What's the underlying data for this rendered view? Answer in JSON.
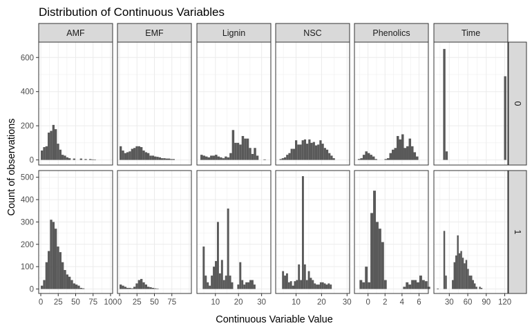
{
  "chart_data": {
    "type": "bar",
    "subtype": "faceted-histogram",
    "title": "Distribution of Continuous Variables",
    "xlabel": "Continuous Variable Value",
    "ylabel": "Count of observations",
    "bar_color": "#595959",
    "panel_border_color": "#333333",
    "strip_fill_color": "#d9d9d9",
    "grid_color": "#ebebeb",
    "grid": true,
    "facet_columns": [
      "AMF",
      "EMF",
      "Lignin",
      "NSC",
      "Phenolics",
      "Time"
    ],
    "facet_rows": [
      "0",
      "1"
    ],
    "x_axes": [
      {
        "column": "AMF",
        "xlim": [
          -3,
          103
        ],
        "ticks": [
          0,
          25,
          50,
          75,
          100
        ],
        "tick_labels": [
          "0",
          "25",
          "50",
          "75",
          "100"
        ]
      },
      {
        "column": "EMF",
        "xlim": [
          -3,
          103
        ],
        "ticks": [
          0,
          25,
          50,
          75
        ],
        "tick_labels": [
          "0",
          "25",
          "50",
          "75"
        ]
      },
      {
        "column": "Lignin",
        "xlim": [
          2,
          34
        ],
        "ticks": [
          10,
          20,
          30
        ],
        "tick_labels": [
          "10",
          "20",
          "30"
        ]
      },
      {
        "column": "NSC",
        "xlim": [
          2,
          31
        ],
        "ticks": [
          10,
          20,
          30
        ],
        "tick_labels": [
          "10",
          "20",
          "30"
        ]
      },
      {
        "column": "Phenolics",
        "xlim": [
          -1.6,
          7.1
        ],
        "ticks": [
          0,
          2,
          4,
          6
        ],
        "tick_labels": [
          "0",
          "2",
          "4",
          "6"
        ]
      },
      {
        "column": "Time",
        "xlim": [
          5,
          125
        ],
        "ticks": [
          30,
          60,
          90,
          120
        ],
        "tick_labels": [
          "30",
          "60",
          "90",
          "120"
        ]
      }
    ],
    "y_axes": [
      {
        "row": "0",
        "ylim": [
          -30,
          690
        ],
        "ticks": [
          0,
          200,
          400,
          600
        ],
        "tick_labels": [
          "0",
          "200",
          "400",
          "600"
        ]
      },
      {
        "row": "1",
        "ylim": [
          -20,
          530
        ],
        "ticks": [
          0,
          100,
          200,
          300,
          400,
          500
        ],
        "tick_labels": [
          "0",
          "100",
          "200",
          "300",
          "400",
          "500"
        ]
      }
    ],
    "panels": [
      {
        "column": "AMF",
        "row": "0",
        "x_start": 0,
        "bin_width": 3.3,
        "counts": [
          55,
          75,
          80,
          160,
          170,
          205,
          180,
          95,
          60,
          30,
          25,
          15,
          10,
          0,
          8,
          0,
          0,
          8,
          0,
          5,
          0,
          5,
          3,
          2
        ]
      },
      {
        "column": "EMF",
        "row": "0",
        "x_start": 0,
        "bin_width": 3.3,
        "counts": [
          80,
          55,
          40,
          45,
          50,
          65,
          70,
          80,
          80,
          75,
          55,
          45,
          40,
          25,
          25,
          20,
          18,
          15,
          10,
          10,
          8,
          8,
          5,
          5
        ]
      },
      {
        "column": "Lignin",
        "row": "0",
        "x_start": 3.5,
        "bin_width": 1.05,
        "counts": [
          30,
          25,
          20,
          15,
          25,
          25,
          30,
          20,
          15,
          10,
          20,
          15,
          40,
          175,
          100,
          100,
          90,
          140,
          125,
          125,
          70,
          35,
          70,
          25,
          0,
          0,
          3
        ]
      },
      {
        "column": "NSC",
        "row": "0",
        "x_start": 3.5,
        "bin_width": 0.87,
        "counts": [
          5,
          10,
          15,
          30,
          40,
          65,
          65,
          115,
          90,
          90,
          115,
          120,
          95,
          120,
          100,
          105,
          85,
          90,
          115,
          95,
          70,
          60,
          40,
          25,
          10
        ]
      },
      {
        "column": "Phenolics",
        "row": "0",
        "x_start": -1.2,
        "bin_width": 0.285,
        "counts": [
          5,
          10,
          30,
          50,
          40,
          30,
          20,
          5,
          0,
          0,
          0,
          5,
          10,
          40,
          60,
          70,
          140,
          120,
          150,
          70,
          80,
          125,
          80,
          45,
          20
        ]
      },
      {
        "column": "Time",
        "row": "0",
        "x_start": 20,
        "bin_width": 3.8,
        "counts": [
          650,
          50,
          0,
          0,
          0,
          0,
          0,
          0,
          0,
          0,
          0,
          0,
          0,
          0,
          0,
          0,
          0,
          0,
          0,
          0,
          0,
          0,
          0,
          0,
          0,
          0,
          490
        ]
      },
      {
        "column": "AMF",
        "row": "1",
        "x_start": 0,
        "bin_width": 3.3,
        "counts": [
          15,
          40,
          120,
          170,
          310,
          300,
          270,
          190,
          165,
          120,
          85,
          65,
          55,
          40,
          25,
          20,
          15,
          5,
          3,
          0,
          0,
          0,
          0
        ]
      },
      {
        "column": "EMF",
        "row": "1",
        "x_start": 0,
        "bin_width": 3.3,
        "counts": [
          20,
          15,
          10,
          5,
          5,
          3,
          10,
          25,
          40,
          45,
          30,
          20,
          10,
          8,
          5,
          3,
          2,
          0,
          0,
          0,
          0
        ]
      },
      {
        "column": "Lignin",
        "row": "1",
        "x_start": 4.5,
        "bin_width": 0.88,
        "counts": [
          190,
          60,
          30,
          15,
          60,
          100,
          125,
          300,
          70,
          130,
          40,
          60,
          360,
          60,
          30,
          0,
          0,
          20,
          120,
          40,
          20,
          30,
          30,
          40,
          40,
          20,
          0,
          0,
          0
        ]
      },
      {
        "column": "NSC",
        "row": "1",
        "x_start": 4.5,
        "bin_width": 0.78,
        "counts": [
          80,
          60,
          70,
          30,
          35,
          15,
          35,
          40,
          110,
          40,
          505,
          110,
          40,
          80,
          50,
          40,
          25,
          20,
          20,
          30,
          30,
          25,
          20,
          25,
          20
        ]
      },
      {
        "column": "Phenolics",
        "row": "1",
        "x_start": -1.0,
        "bin_width": 0.32,
        "counts": [
          40,
          30,
          100,
          30,
          340,
          440,
          300,
          270,
          210,
          40,
          0,
          0,
          0,
          0,
          0,
          0,
          10,
          30,
          20,
          40,
          40,
          30,
          60,
          40,
          35,
          10
        ]
      },
      {
        "column": "Time",
        "row": "1",
        "x_start": 20.5,
        "bin_width": 2.75,
        "counts": [
          260,
          60,
          0,
          0,
          0,
          40,
          120,
          150,
          240,
          160,
          170,
          140,
          115,
          130,
          90,
          60,
          60,
          40,
          25,
          10,
          0,
          10,
          5
        ]
      }
    ]
  },
  "extra_series": [
    {
      "column": "Time",
      "row": "1",
      "x": 10,
      "count": 2
    }
  ]
}
